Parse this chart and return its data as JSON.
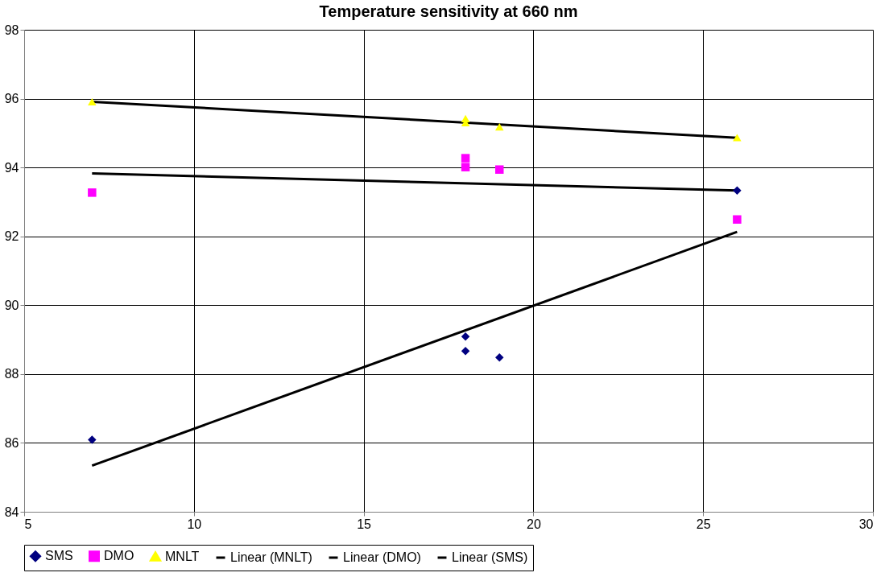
{
  "chart_data": {
    "type": "scatter",
    "title": "Temperature sensitivity at 660 nm",
    "xlim": [
      5,
      30
    ],
    "xticks": [
      5,
      10,
      15,
      20,
      25,
      30
    ],
    "ylim": [
      84,
      98
    ],
    "yticks": [
      84,
      86,
      88,
      90,
      92,
      94,
      96,
      98
    ],
    "grid": true,
    "legend": "bottom",
    "series": [
      {
        "name": "SMS",
        "marker": "diamond",
        "color": "#000080",
        "x": [
          7,
          18,
          18,
          19,
          26
        ],
        "values": [
          86.09,
          89.09,
          88.67,
          88.48,
          93.33
        ]
      },
      {
        "name": "DMO",
        "marker": "square",
        "color": "#ff00ff",
        "x": [
          7,
          18,
          18,
          19,
          26
        ],
        "values": [
          93.27,
          94.27,
          94.01,
          93.94,
          92.49
        ]
      },
      {
        "name": "MNLT",
        "marker": "triangle",
        "color": "#ffff00",
        "x": [
          7,
          18,
          18,
          19,
          26
        ],
        "values": [
          95.91,
          95.42,
          95.3,
          95.18,
          94.87
        ]
      },
      {
        "name": "Linear (MNLT)",
        "type": "line",
        "color": "#000000",
        "x": [
          7,
          26
        ],
        "values": [
          95.91,
          94.86
        ]
      },
      {
        "name": "Linear (DMO)",
        "type": "line",
        "color": "#000000",
        "x": [
          7,
          26
        ],
        "values": [
          93.83,
          93.33
        ]
      },
      {
        "name": "Linear (SMS)",
        "type": "line",
        "color": "#000000",
        "x": [
          7,
          26
        ],
        "values": [
          85.34,
          92.13
        ]
      }
    ]
  }
}
